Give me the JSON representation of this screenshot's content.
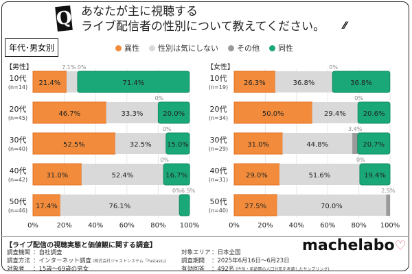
{
  "header": {
    "q_mark": "Q",
    "title_line1": "あなたが主に視聴する",
    "title_line2": "ライブ配信者の性別について教えてください。",
    "tag": "年代･男女別"
  },
  "colors": {
    "hetero": "#f28c3c",
    "dontcare": "#d9d9d9",
    "other": "#9a9a9a",
    "same": "#1aa878"
  },
  "legend": [
    "異性",
    "性別は気にしない",
    "その他",
    "同性"
  ],
  "chart_data": [
    {
      "type": "bar",
      "orientation": "horizontal",
      "stacked": true,
      "title": "【男性】",
      "categories": [
        "10代",
        "20代",
        "30代",
        "40代",
        "50代"
      ],
      "sample_sizes": [
        "(n=14)",
        "(n=45)",
        "(n=40)",
        "(n=42)",
        "(n=46)"
      ],
      "series": [
        {
          "name": "異性",
          "values": [
            21.4,
            46.7,
            52.5,
            31.0,
            17.4
          ]
        },
        {
          "name": "性別は気にしない",
          "values": [
            7.1,
            33.3,
            32.5,
            52.4,
            76.1
          ]
        },
        {
          "name": "その他",
          "values": [
            0,
            0,
            0,
            0,
            0
          ]
        },
        {
          "name": "同性",
          "values": [
            71.4,
            20.0,
            15.0,
            16.7,
            6.5
          ]
        }
      ],
      "xlim": [
        0,
        100
      ],
      "xticks": [
        "0%",
        "20%",
        "40%",
        "60%",
        "80%",
        "100%"
      ],
      "grid": true
    },
    {
      "type": "bar",
      "orientation": "horizontal",
      "stacked": true,
      "title": "【女性】",
      "categories": [
        "10代",
        "20代",
        "30代",
        "40代",
        "50代"
      ],
      "sample_sizes": [
        "(n=19)",
        "(n=34)",
        "(n=29)",
        "(n=31)",
        "(n=40)"
      ],
      "series": [
        {
          "name": "異性",
          "values": [
            26.3,
            50.0,
            31.0,
            29.0,
            27.5
          ]
        },
        {
          "name": "性別は気にしない",
          "values": [
            36.8,
            29.4,
            44.8,
            51.6,
            70.0
          ]
        },
        {
          "name": "その他",
          "values": [
            0,
            0,
            3.4,
            0,
            2.5
          ]
        },
        {
          "name": "同性",
          "values": [
            36.8,
            20.6,
            20.7,
            19.4,
            0
          ]
        }
      ],
      "xlim": [
        0,
        100
      ],
      "xticks": [
        "0%",
        "20%",
        "40%",
        "60%",
        "80%",
        "100%"
      ],
      "grid": true
    }
  ],
  "footer": {
    "heading": "【ライブ配信の視聴実態と価値観に関する調査】",
    "rows": [
      {
        "label": "調査機関",
        "value": "：自社調査"
      },
      {
        "label": "調査方法",
        "value": "：インターネット調査",
        "note": "(株式会社ジャストシステム「Fastask」)"
      },
      {
        "label": "対象者",
        "value": "：15歳～69歳の男女"
      },
      {
        "label": "対象エリア",
        "value": "：日本全国"
      },
      {
        "label": "調査期間",
        "value": "：2025年6月16日～6月23日"
      },
      {
        "label": "有効回答",
        "value": "：492名",
        "note": "(性別・年齢層の人口分布を考慮したサンプリング)"
      }
    ],
    "logo": "machelabo"
  }
}
